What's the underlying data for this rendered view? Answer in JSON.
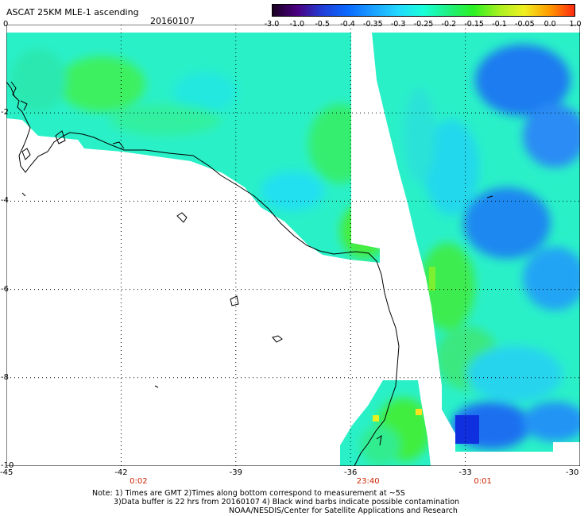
{
  "header": {
    "title": "ASCAT 25KM MLE-1 ascending",
    "date": "20160107"
  },
  "colorbar": {
    "labels": [
      "-3.0",
      "-1.0",
      "-0.5",
      "-0.4",
      "-0.35",
      "-0.3",
      "-0.25",
      "-0.2",
      "-0.15",
      "-0.1",
      "-0.05",
      "0.0",
      "1.0"
    ],
    "colors": [
      "#1a0022",
      "#4b0082",
      "#1f3fd8",
      "#0a6aff",
      "#1aa0ff",
      "#22d8ff",
      "#18ffd8",
      "#20f080",
      "#2cf020",
      "#a8f020",
      "#f0f020",
      "#ff9a00",
      "#ff2a10"
    ]
  },
  "map": {
    "lon_range": [
      -45,
      -30
    ],
    "lat_range": [
      -10,
      0
    ],
    "lon_ticks": [
      "-45",
      "-42",
      "-39",
      "-36",
      "-33",
      "-30"
    ],
    "lat_ticks": [
      "0",
      "-2",
      "-4",
      "-6",
      "-8",
      "-10"
    ],
    "time_labels": [
      {
        "lon": -42,
        "text": "0:02"
      },
      {
        "lon": -36,
        "text": "23:40"
      },
      {
        "lon": -33,
        "text": "0:01"
      }
    ]
  },
  "notes": {
    "line1": "Note: 1) Times are GMT 2)Times along bottom correspond to measurement at ~5S",
    "line2": "3)Data buffer is 22 hrs from 20160107 4) Black wind barbs indicate possible contamination",
    "line3": "NOAA/NESDIS/Center for Satellite Applications and Research"
  }
}
